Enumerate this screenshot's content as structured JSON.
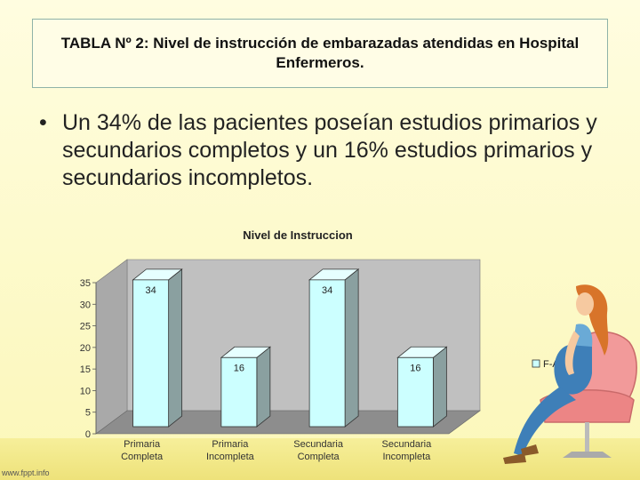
{
  "slide": {
    "title": "TABLA Nº 2: Nivel de instrucción de embarazadas atendidas en Hospital Enfermeros.",
    "bullet": "Un 34% de las pacientes poseían estudios primarios y secundarios completos y un 16% estudios primarios y secundarios incompletos.",
    "footer": "www.fppt.info",
    "colors": {
      "bar_front": "#ccffff",
      "bar_side": "#8aa0a0",
      "wall": "#c0c0c0",
      "floor": "#8d8d8d",
      "background": "#fdfbcf"
    },
    "illustration": "pregnant-woman-sitting-in-armchair"
  },
  "chart_data": {
    "type": "bar",
    "title": "Nivel de Instruccion",
    "categories": [
      [
        "Primaria",
        "Completa"
      ],
      [
        "Primaria",
        "Incompleta"
      ],
      [
        "Secundaria",
        "Completa"
      ],
      [
        "Secundaria",
        "Incompleta"
      ]
    ],
    "series": [
      {
        "name": "F-A",
        "values": [
          34,
          16,
          34,
          16
        ]
      }
    ],
    "data_labels": [
      "34",
      "16",
      "34",
      "16"
    ],
    "ylim": [
      0,
      35
    ],
    "yticks": [
      "0",
      "5",
      "10",
      "15",
      "20",
      "25",
      "30",
      "35"
    ],
    "ytick_values": [
      0,
      5,
      10,
      15,
      20,
      25,
      30,
      35
    ],
    "grid": false,
    "legend_position": "right",
    "projection": "3d"
  }
}
